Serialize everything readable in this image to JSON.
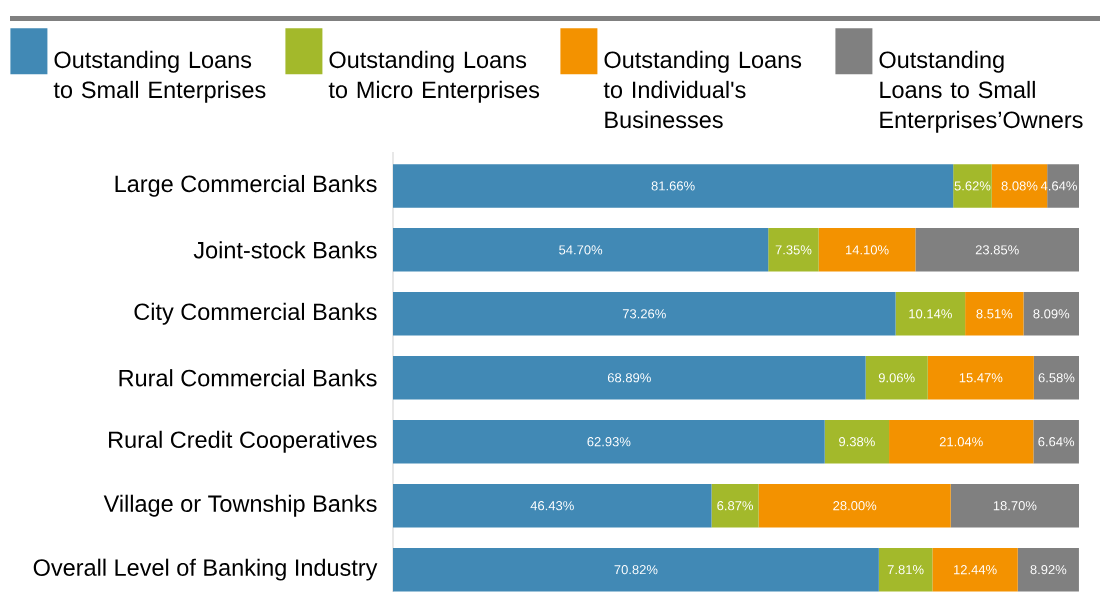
{
  "chart_data": {
    "type": "bar",
    "orientation": "horizontal",
    "stacked": true,
    "legend": "top",
    "tick_labels": "y",
    "categories": [
      "Large Commercial Banks",
      "Joint-stock Banks",
      "City Commercial Banks",
      "Rural Commercial Banks",
      "Rural Credit Cooperatives",
      "Village or Township Banks",
      "Overall Level of Banking Industry"
    ],
    "series": [
      {
        "name": "Outstanding Loans to Small Enterprises",
        "color": "#4189b5",
        "values": [
          81.66,
          54.7,
          73.26,
          68.89,
          62.93,
          46.43,
          70.82
        ],
        "value_labels": [
          "81.66%",
          "54.70%",
          "73.26%",
          "68.89%",
          "62.93%",
          "46.43%",
          "70.82%"
        ]
      },
      {
        "name": "Outstanding Loans to Micro Enterprises",
        "color": "#a3b92b",
        "values": [
          5.62,
          7.35,
          10.14,
          9.06,
          9.38,
          6.87,
          7.81
        ],
        "value_labels": [
          "5.62%",
          "7.35%",
          "10.14%",
          "9.06%",
          "9.38%",
          "6.87%",
          "7.81%"
        ]
      },
      {
        "name": "Outstanding Loans to Individual's Businesses",
        "color": "#f39200",
        "values": [
          8.08,
          14.1,
          8.51,
          15.47,
          21.04,
          28.0,
          12.44
        ],
        "value_labels": [
          "8.08%",
          "14.10%",
          "8.51%",
          "15.47%",
          "21.04%",
          "28.00%",
          "12.44%"
        ]
      },
      {
        "name": "Outstanding Loans to Small Enterprises’Owners",
        "color": "#808080",
        "values": [
          4.64,
          23.85,
          8.09,
          6.58,
          6.64,
          18.7,
          8.92
        ],
        "value_labels": [
          "4.64%",
          "23.85%",
          "8.09%",
          "6.58%",
          "6.64%",
          "18.70%",
          "8.92%"
        ]
      }
    ]
  }
}
